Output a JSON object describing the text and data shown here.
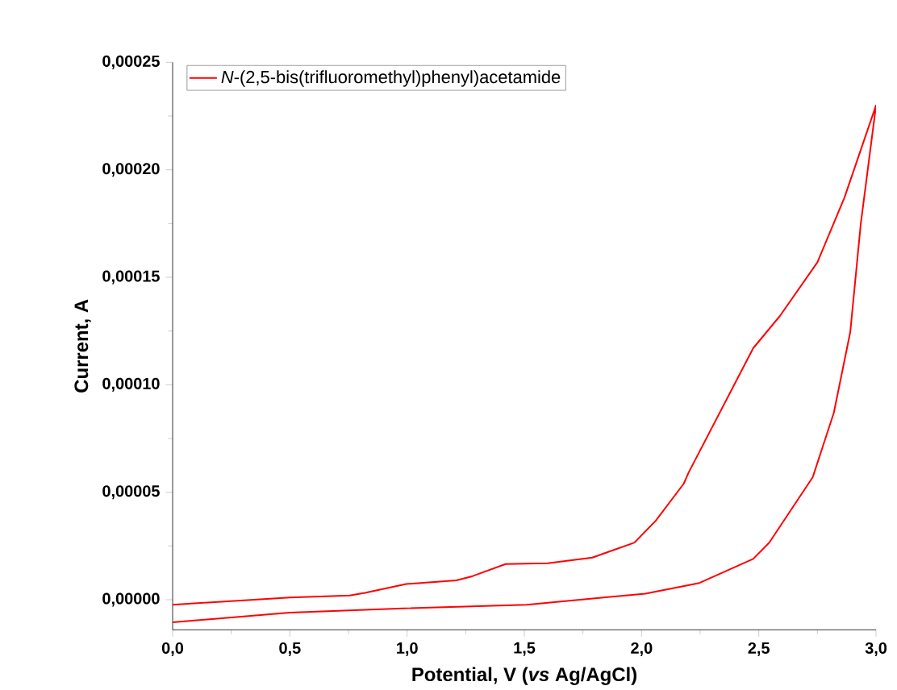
{
  "chart_data": {
    "type": "line",
    "xlabel": "Potential, V (*vs* Ag/AgCl)",
    "ylabel": "Current, A",
    "series": [
      {
        "name": "*N*-(2,5-bis(trifluoromethyl)phenyl)acetamide",
        "color": "#ff0000",
        "x": [
          0,
          0.5,
          0.755,
          0.82,
          0.996,
          1.21,
          1.28,
          1.42,
          1.6,
          1.79,
          1.97,
          2.06,
          2.18,
          2.2,
          2.476,
          2.59,
          2.75,
          2.865,
          3.0,
          2.935,
          2.89,
          2.82,
          2.73,
          2.545,
          2.476,
          2.247,
          2.016,
          1.51,
          0.984,
          0.5,
          0
        ],
        "values": [
          -2.3e-06,
          1e-06,
          2e-06,
          3.2e-06,
          7.3e-06,
          9e-06,
          1.1e-05,
          1.66e-05,
          1.7e-05,
          1.96e-05,
          2.66e-05,
          3.67e-05,
          5.4e-05,
          5.9e-05,
          0.000117,
          0.000132,
          0.000157,
          0.000187,
          0.00023,
          0.000175,
          0.0001245,
          8.7e-05,
          5.7e-05,
          2.66e-05,
          1.9e-05,
          7.8e-06,
          2.8e-06,
          -2.3e-06,
          -4e-06,
          -6e-06,
          -1.05e-05
        ]
      }
    ],
    "xlim": [
      0,
      3.0
    ],
    "ylim": [
      -1.4e-05,
      0.00025
    ],
    "xticks": [
      {
        "value": 0,
        "label": "0,0"
      },
      {
        "value": 0.5,
        "label": "0,5"
      },
      {
        "value": 1.0,
        "label": "1,0"
      },
      {
        "value": 1.5,
        "label": "1,5"
      },
      {
        "value": 2.0,
        "label": "2,0"
      },
      {
        "value": 2.5,
        "label": "2,5"
      },
      {
        "value": 3.0,
        "label": "3,0"
      }
    ],
    "yticks": [
      {
        "value": 0,
        "label": "0,00000"
      },
      {
        "value": 5e-05,
        "label": "0,00005"
      },
      {
        "value": 0.0001,
        "label": "0,00010"
      },
      {
        "value": 0.00015,
        "label": "0,00015"
      },
      {
        "value": 0.0002,
        "label": "0,00020"
      },
      {
        "value": 0.00025,
        "label": "0,00025"
      }
    ],
    "grid": false,
    "legend": "top left",
    "marker": "none",
    "line_style": "solid"
  }
}
